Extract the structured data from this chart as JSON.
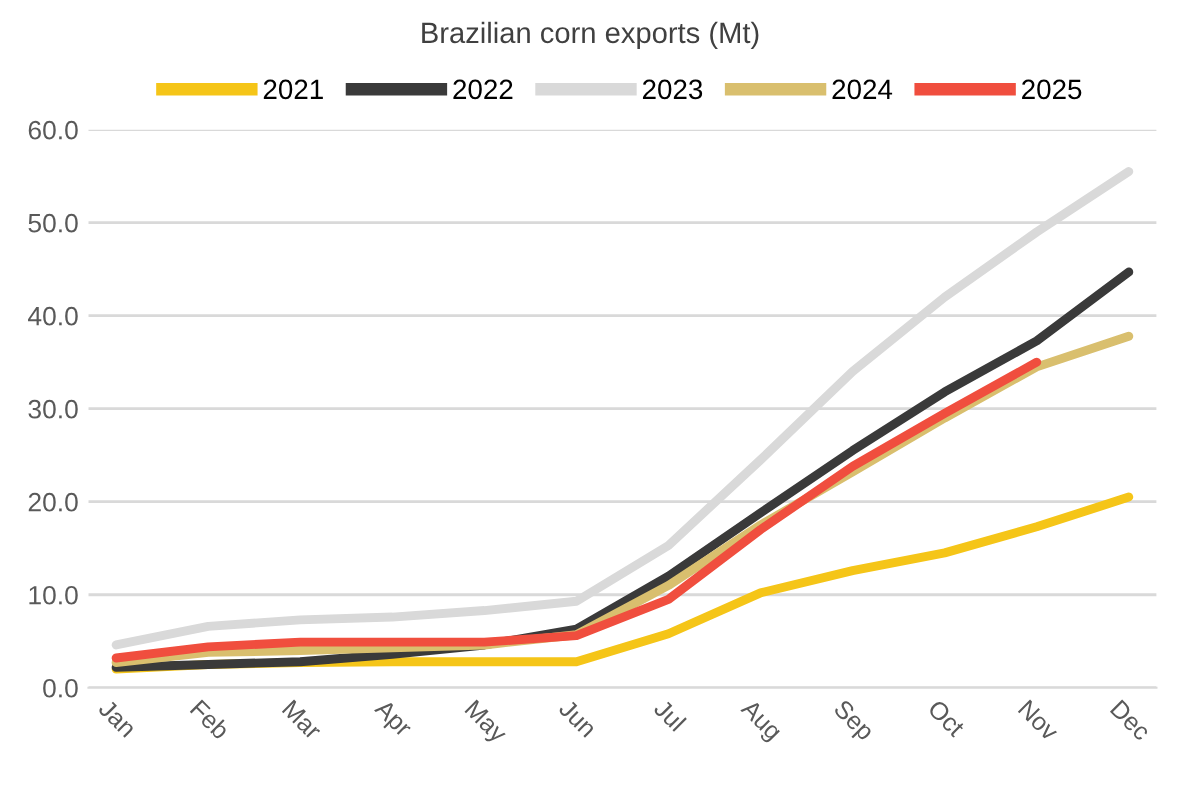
{
  "chart_data": {
    "type": "line",
    "title": "Brazilian corn exports (Mt)",
    "categories": [
      "Jan",
      "Feb",
      "Mar",
      "Apr",
      "May",
      "Jun",
      "Jul",
      "Aug",
      "Sep",
      "Oct",
      "Nov",
      "Dec"
    ],
    "series": [
      {
        "name": "2021",
        "color": "#f5c518",
        "values": [
          2.0,
          2.5,
          2.7,
          2.8,
          2.8,
          2.8,
          5.8,
          10.2,
          12.6,
          14.5,
          17.3,
          20.5
        ]
      },
      {
        "name": "2022",
        "color": "#3a3a3a",
        "values": [
          2.2,
          2.5,
          2.8,
          3.6,
          4.6,
          6.3,
          12.0,
          18.8,
          25.5,
          31.8,
          37.3,
          44.7
        ]
      },
      {
        "name": "2023",
        "color": "#d9d9d9",
        "values": [
          4.6,
          6.6,
          7.3,
          7.6,
          8.3,
          9.3,
          15.3,
          24.5,
          34.0,
          42.0,
          49.0,
          55.5
        ]
      },
      {
        "name": "2024",
        "color": "#d9bf6e",
        "values": [
          2.7,
          3.8,
          4.0,
          4.3,
          4.6,
          5.7,
          11.0,
          17.5,
          23.2,
          29.0,
          34.5,
          37.8
        ]
      },
      {
        "name": "2025",
        "color": "#f04e3e",
        "values": [
          3.2,
          4.4,
          4.9,
          4.9,
          4.9,
          5.6,
          9.5,
          17.0,
          23.8,
          29.5,
          35.0,
          null
        ]
      }
    ],
    "ylim": [
      0,
      60
    ],
    "yticks": [
      {
        "value": 0,
        "label": "0.0"
      },
      {
        "value": 10,
        "label": "10.0"
      },
      {
        "value": 20,
        "label": "20.0"
      },
      {
        "value": 30,
        "label": "30.0"
      },
      {
        "value": 40,
        "label": "40.0"
      },
      {
        "value": 50,
        "label": "50.0"
      },
      {
        "value": 60,
        "label": "60.0"
      }
    ],
    "grid": "y",
    "legend": "top",
    "marker": "none",
    "line_style": "solid"
  }
}
